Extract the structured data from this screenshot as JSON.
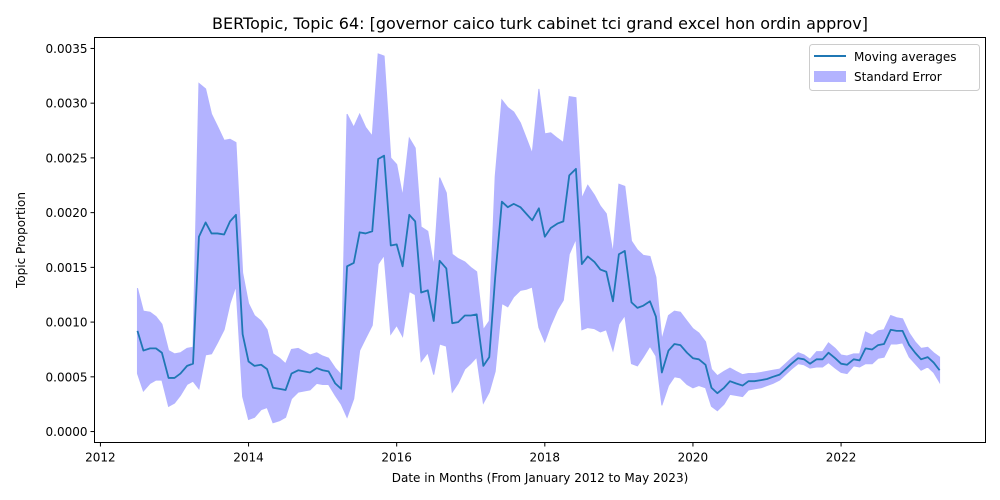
{
  "chart_data": {
    "type": "line",
    "title": "BERTopic, Topic 64: [governor caico turk cabinet tci grand excel hon ordin approv]",
    "xlabel": "Date in Months (From January 2012 to May 2023)",
    "ylabel": "Topic Proportion",
    "xlim": [
      2011.92,
      2023.95
    ],
    "ylim": [
      -0.0001,
      0.0036
    ],
    "xticks": [
      2012,
      2014,
      2016,
      2018,
      2020,
      2022
    ],
    "xtick_labels": [
      "2012",
      "2014",
      "2016",
      "2018",
      "2020",
      "2022"
    ],
    "yticks": [
      0.0,
      0.0005,
      0.001,
      0.0015,
      0.002,
      0.0025,
      0.003,
      0.0035
    ],
    "ytick_labels": [
      "0.0000",
      "0.0005",
      "0.0010",
      "0.0015",
      "0.0020",
      "0.0025",
      "0.0030",
      "0.0035"
    ],
    "grid": false,
    "legend": {
      "placement": "top-right",
      "entries": [
        "Moving averages",
        "Standard Error"
      ]
    },
    "colors": {
      "line": "#1f77b4",
      "band": "#b3b3ff",
      "band_stroke": "#8080ff"
    },
    "series": [
      {
        "name": "Moving averages",
        "x": [
          2012.5,
          2012.58,
          2012.67,
          2012.75,
          2012.83,
          2012.92,
          2013.0,
          2013.08,
          2013.17,
          2013.25,
          2013.33,
          2013.42,
          2013.5,
          2013.58,
          2013.67,
          2013.75,
          2013.83,
          2013.92,
          2014.0,
          2014.08,
          2014.17,
          2014.25,
          2014.33,
          2014.42,
          2014.5,
          2014.58,
          2014.67,
          2014.75,
          2014.83,
          2014.92,
          2015.0,
          2015.08,
          2015.17,
          2015.25,
          2015.33,
          2015.42,
          2015.5,
          2015.58,
          2015.67,
          2015.75,
          2015.83,
          2015.92,
          2016.0,
          2016.08,
          2016.17,
          2016.25,
          2016.33,
          2016.42,
          2016.5,
          2016.58,
          2016.67,
          2016.75,
          2016.83,
          2016.92,
          2017.0,
          2017.08,
          2017.17,
          2017.25,
          2017.33,
          2017.42,
          2017.5,
          2017.58,
          2017.67,
          2017.75,
          2017.83,
          2017.92,
          2018.0,
          2018.08,
          2018.17,
          2018.25,
          2018.33,
          2018.42,
          2018.5,
          2018.58,
          2018.67,
          2018.75,
          2018.83,
          2018.92,
          2019.0,
          2019.08,
          2019.17,
          2019.25,
          2019.33,
          2019.42,
          2019.5,
          2019.58,
          2019.67,
          2019.75,
          2019.83,
          2019.92,
          2020.0,
          2020.08,
          2020.17,
          2020.25,
          2020.33,
          2020.42,
          2020.5,
          2020.58,
          2020.67,
          2020.75,
          2020.83,
          2020.92,
          2021.0,
          2021.08,
          2021.17,
          2021.25,
          2021.33,
          2021.42,
          2021.5,
          2021.58,
          2021.67,
          2021.75,
          2021.83,
          2021.92,
          2022.0,
          2022.08,
          2022.17,
          2022.25,
          2022.33,
          2022.42,
          2022.5,
          2022.58,
          2022.67,
          2022.75,
          2022.83,
          2022.92,
          2023.0,
          2023.08,
          2023.17,
          2023.25,
          2023.33
        ],
        "values": [
          0.00092,
          0.00074,
          0.00076,
          0.00076,
          0.00072,
          0.00049,
          0.00049,
          0.00053,
          0.0006,
          0.00062,
          0.00178,
          0.00191,
          0.00181,
          0.00181,
          0.0018,
          0.00192,
          0.00198,
          0.00089,
          0.00064,
          0.0006,
          0.00061,
          0.00057,
          0.0004,
          0.00039,
          0.00038,
          0.00053,
          0.00056,
          0.00055,
          0.00054,
          0.00058,
          0.00056,
          0.00055,
          0.00044,
          0.00039,
          0.00151,
          0.00154,
          0.00182,
          0.00181,
          0.00183,
          0.00249,
          0.00252,
          0.0017,
          0.00171,
          0.00151,
          0.00198,
          0.00192,
          0.00127,
          0.00129,
          0.00101,
          0.00156,
          0.00149,
          0.00099,
          0.001,
          0.00106,
          0.00106,
          0.00107,
          0.0006,
          0.00068,
          0.00141,
          0.0021,
          0.00205,
          0.00208,
          0.00205,
          0.00199,
          0.00193,
          0.00204,
          0.00178,
          0.00186,
          0.0019,
          0.00192,
          0.00234,
          0.0024,
          0.00153,
          0.0016,
          0.00155,
          0.00148,
          0.00146,
          0.00119,
          0.00162,
          0.00165,
          0.00118,
          0.00113,
          0.00115,
          0.00119,
          0.00105,
          0.00054,
          0.00074,
          0.0008,
          0.00079,
          0.00072,
          0.00067,
          0.00066,
          0.00061,
          0.0004,
          0.00035,
          0.0004,
          0.00046,
          0.00044,
          0.00042,
          0.00046,
          0.00046,
          0.00047,
          0.00048,
          0.0005,
          0.00052,
          0.00057,
          0.00062,
          0.00067,
          0.00066,
          0.00062,
          0.00066,
          0.00066,
          0.00072,
          0.00067,
          0.00062,
          0.00061,
          0.00066,
          0.00065,
          0.00076,
          0.00075,
          0.00079,
          0.0008,
          0.00093,
          0.00092,
          0.00092,
          0.00079,
          0.00072,
          0.00066,
          0.00068,
          0.00063,
          0.00056
        ]
      },
      {
        "name": "Standard Error",
        "x": [
          2012.5,
          2012.58,
          2012.67,
          2012.75,
          2012.83,
          2012.92,
          2013.0,
          2013.08,
          2013.17,
          2013.25,
          2013.33,
          2013.42,
          2013.5,
          2013.58,
          2013.67,
          2013.75,
          2013.83,
          2013.92,
          2014.0,
          2014.08,
          2014.17,
          2014.25,
          2014.33,
          2014.42,
          2014.5,
          2014.58,
          2014.67,
          2014.75,
          2014.83,
          2014.92,
          2015.0,
          2015.08,
          2015.17,
          2015.25,
          2015.33,
          2015.42,
          2015.5,
          2015.58,
          2015.67,
          2015.75,
          2015.83,
          2015.92,
          2016.0,
          2016.08,
          2016.17,
          2016.25,
          2016.33,
          2016.42,
          2016.5,
          2016.58,
          2016.67,
          2016.75,
          2016.83,
          2016.92,
          2017.0,
          2017.08,
          2017.17,
          2017.25,
          2017.33,
          2017.42,
          2017.5,
          2017.58,
          2017.67,
          2017.75,
          2017.83,
          2017.92,
          2018.0,
          2018.08,
          2018.17,
          2018.25,
          2018.33,
          2018.42,
          2018.5,
          2018.58,
          2018.67,
          2018.75,
          2018.83,
          2018.92,
          2019.0,
          2019.08,
          2019.17,
          2019.25,
          2019.33,
          2019.42,
          2019.5,
          2019.58,
          2019.67,
          2019.75,
          2019.83,
          2019.92,
          2020.0,
          2020.08,
          2020.17,
          2020.25,
          2020.33,
          2020.42,
          2020.5,
          2020.58,
          2020.67,
          2020.75,
          2020.83,
          2020.92,
          2021.0,
          2021.08,
          2021.17,
          2021.25,
          2021.33,
          2021.42,
          2021.5,
          2021.58,
          2021.67,
          2021.75,
          2021.83,
          2021.92,
          2022.0,
          2022.08,
          2022.17,
          2022.25,
          2022.33,
          2022.42,
          2022.5,
          2022.58,
          2022.67,
          2022.75,
          2022.83,
          2022.92,
          2023.0,
          2023.08,
          2023.17,
          2023.25,
          2023.33
        ],
        "upper": [
          0.00131,
          0.0011,
          0.00109,
          0.00105,
          0.00098,
          0.00074,
          0.00071,
          0.00072,
          0.00076,
          0.00077,
          0.00318,
          0.00313,
          0.0029,
          0.00279,
          0.00266,
          0.00267,
          0.00264,
          0.00145,
          0.00117,
          0.00106,
          0.00101,
          0.00093,
          0.00071,
          0.00067,
          0.00062,
          0.00075,
          0.00076,
          0.00073,
          0.0007,
          0.00072,
          0.00069,
          0.00067,
          0.00058,
          0.00052,
          0.0029,
          0.00278,
          0.0029,
          0.00278,
          0.0027,
          0.00345,
          0.00343,
          0.0025,
          0.00244,
          0.00215,
          0.00268,
          0.00259,
          0.00187,
          0.00183,
          0.00151,
          0.00232,
          0.00218,
          0.00162,
          0.00158,
          0.00155,
          0.0015,
          0.00146,
          0.00093,
          0.00101,
          0.00233,
          0.00303,
          0.00296,
          0.00292,
          0.00282,
          0.00268,
          0.00254,
          0.00313,
          0.00272,
          0.00273,
          0.00268,
          0.00264,
          0.00306,
          0.00305,
          0.00213,
          0.00225,
          0.00216,
          0.00206,
          0.00199,
          0.00163,
          0.00226,
          0.00224,
          0.00174,
          0.00166,
          0.00161,
          0.0016,
          0.00141,
          0.00084,
          0.00106,
          0.0011,
          0.00109,
          0.00101,
          0.00094,
          0.0009,
          0.00082,
          0.00057,
          0.00051,
          0.00055,
          0.00058,
          0.00055,
          0.00052,
          0.00053,
          0.00053,
          0.00054,
          0.00055,
          0.00056,
          0.00057,
          0.00062,
          0.00067,
          0.00072,
          0.0007,
          0.00066,
          0.00073,
          0.00073,
          0.00081,
          0.00076,
          0.0007,
          0.00069,
          0.00071,
          0.00071,
          0.00091,
          0.00088,
          0.00092,
          0.00093,
          0.00106,
          0.00104,
          0.00103,
          0.0009,
          0.00082,
          0.00076,
          0.00077,
          0.00072,
          0.00068
        ],
        "lower": [
          0.00053,
          0.00037,
          0.00044,
          0.00047,
          0.00047,
          0.00023,
          0.00026,
          0.00033,
          0.00043,
          0.00046,
          0.00039,
          0.0007,
          0.00071,
          0.00081,
          0.00093,
          0.00117,
          0.00133,
          0.00032,
          0.00011,
          0.00013,
          0.0002,
          0.00022,
          8e-05,
          0.0001,
          0.00013,
          0.0003,
          0.00036,
          0.00037,
          0.00038,
          0.00044,
          0.00043,
          0.00043,
          0.00033,
          0.00025,
          0.00013,
          0.0003,
          0.00074,
          0.00085,
          0.00097,
          0.00153,
          0.00161,
          0.00089,
          0.00097,
          0.00087,
          0.00128,
          0.00125,
          0.00064,
          0.00072,
          0.00052,
          0.0008,
          0.00078,
          0.00036,
          0.00044,
          0.00057,
          0.00062,
          0.00068,
          0.00026,
          0.00036,
          0.00055,
          0.00117,
          0.00114,
          0.00123,
          0.00129,
          0.0013,
          0.00132,
          0.00095,
          0.00082,
          0.00097,
          0.00111,
          0.0012,
          0.00162,
          0.00176,
          0.00093,
          0.00095,
          0.00094,
          0.00091,
          0.00093,
          0.00074,
          0.00098,
          0.00106,
          0.00062,
          0.0006,
          0.00068,
          0.00078,
          0.00069,
          0.00024,
          0.00042,
          0.0005,
          0.00049,
          0.00043,
          0.0004,
          0.00042,
          0.0004,
          0.00023,
          0.00019,
          0.00025,
          0.00034,
          0.00033,
          0.00032,
          0.00038,
          0.00039,
          0.0004,
          0.00042,
          0.00044,
          0.00047,
          0.00052,
          0.00057,
          0.00062,
          0.00061,
          0.00058,
          0.00059,
          0.00059,
          0.00063,
          0.00058,
          0.00054,
          0.00053,
          0.0006,
          0.00059,
          0.00062,
          0.00062,
          0.00067,
          0.00068,
          0.0008,
          0.0008,
          0.00081,
          0.00068,
          0.00062,
          0.00056,
          0.00059,
          0.00054,
          0.00045
        ]
      }
    ]
  }
}
